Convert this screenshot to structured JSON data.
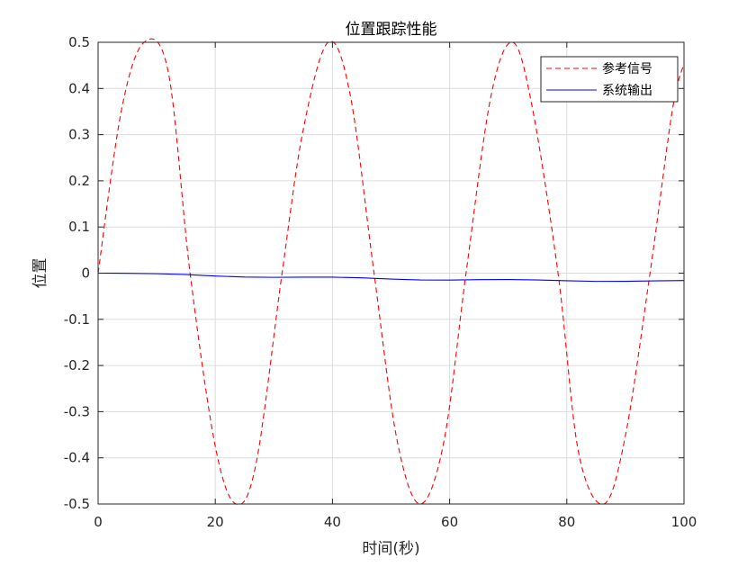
{
  "chart_data": {
    "type": "line",
    "title": "位置跟踪性能",
    "xlabel": "时间(秒)",
    "ylabel": "位置",
    "xlim": [
      0,
      100
    ],
    "ylim": [
      -0.5,
      0.5
    ],
    "x_ticks": [
      0,
      20,
      40,
      60,
      80,
      100
    ],
    "y_ticks": [
      0.5,
      0.4,
      0.3,
      0.2,
      0.1,
      0,
      -0.1,
      -0.2,
      -0.3,
      -0.4,
      -0.5
    ],
    "x_tick_labels": [
      "0",
      "20",
      "40",
      "60",
      "80",
      "100"
    ],
    "y_tick_labels": [
      "0.5",
      "0.4",
      "0.3",
      "0.2",
      "0.1",
      "0",
      "-0.1",
      "-0.2",
      "-0.3",
      "-0.4",
      "-0.5"
    ],
    "grid": true,
    "legend_position": "top-right",
    "series": [
      {
        "name": "参考信号",
        "color": "#ff0000",
        "line_style": "dashed",
        "x": [
          0,
          4,
          7.85,
          12,
          15.7,
          20,
          23.55,
          27,
          31.4,
          35,
          39.25,
          43,
          47.1,
          51,
          54.95,
          59,
          62.8,
          67,
          70.7,
          74,
          78.5,
          82,
          86.35,
          90,
          94.2,
          98,
          100
        ],
        "y": [
          0,
          0.354,
          0.5,
          0.434,
          0,
          -0.375,
          -0.5,
          -0.41,
          0,
          0.31,
          0.5,
          0.388,
          0,
          -0.36,
          -0.5,
          -0.366,
          0,
          0.38,
          0.5,
          0.366,
          0,
          -0.388,
          -0.5,
          -0.352,
          0,
          0.352,
          0.454
        ]
      },
      {
        "name": "系统输出",
        "color": "#0000ff",
        "line_style": "solid",
        "x": [
          0,
          5,
          10,
          15,
          20,
          25,
          30,
          35,
          40,
          45,
          50,
          55,
          60,
          65,
          70,
          75,
          80,
          85,
          90,
          95,
          100
        ],
        "y": [
          0,
          -0.0003,
          -0.0012,
          -0.003,
          -0.0062,
          -0.0085,
          -0.009,
          -0.0086,
          -0.0087,
          -0.0102,
          -0.0128,
          -0.0148,
          -0.0149,
          -0.0141,
          -0.0138,
          -0.0148,
          -0.0165,
          -0.0178,
          -0.0176,
          -0.0166,
          -0.016
        ]
      }
    ]
  }
}
